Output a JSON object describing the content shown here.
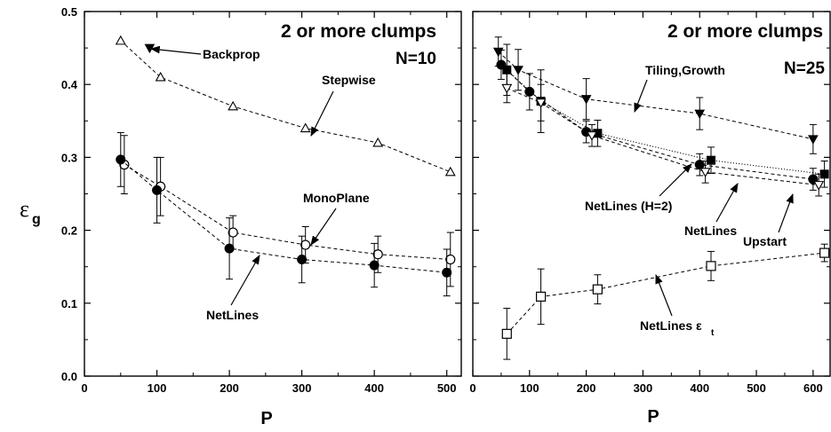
{
  "chart_data": [
    {
      "type": "scatter",
      "panel": "left",
      "title": "2 or more clumps",
      "n_label": "N=10",
      "xlabel": "P",
      "ylabel": "ε",
      "ylabel_sub": "g",
      "xlim": [
        0,
        520
      ],
      "ylim": [
        0,
        0.5
      ],
      "xticks": [
        0,
        100,
        200,
        300,
        400,
        500
      ],
      "yticks": [
        0.0,
        0.1,
        0.2,
        0.3,
        0.4,
        0.5
      ],
      "series": [
        {
          "name": "Backprop",
          "marker": "triangle-down-filled",
          "dashed": true,
          "x": [
            90
          ],
          "y": [
            0.45
          ],
          "err": [
            0
          ]
        },
        {
          "name": "Stepwise",
          "marker": "triangle-up-open",
          "dashed": true,
          "x": [
            50,
            105,
            205,
            305,
            405,
            505
          ],
          "y": [
            0.46,
            0.41,
            0.37,
            0.34,
            0.32,
            0.28
          ],
          "err": [
            0,
            0,
            0,
            0,
            0,
            0
          ]
        },
        {
          "name": "MonoPlane",
          "marker": "circle-open",
          "dashed": true,
          "x": [
            55,
            105,
            205,
            305,
            405,
            505
          ],
          "y": [
            0.29,
            0.26,
            0.197,
            0.18,
            0.167,
            0.16
          ],
          "err": [
            0.04,
            0.04,
            0.023,
            0.025,
            0.025,
            0.037
          ]
        },
        {
          "name": "NetLines",
          "marker": "circle-filled",
          "dashed": true,
          "x": [
            50,
            100,
            200,
            300,
            400,
            500
          ],
          "y": [
            0.297,
            0.255,
            0.175,
            0.16,
            0.152,
            0.142
          ],
          "err": [
            0.037,
            0.045,
            0.042,
            0.032,
            0.03,
            0.032
          ]
        }
      ],
      "annotations": [
        {
          "text": "Backprop",
          "target_series": "Backprop"
        },
        {
          "text": "Stepwise",
          "target_series": "Stepwise"
        },
        {
          "text": "MonoPlane",
          "target_series": "MonoPlane"
        },
        {
          "text": "NetLines",
          "target_series": "NetLines"
        }
      ]
    },
    {
      "type": "scatter",
      "panel": "right",
      "title": "2 or more clumps",
      "n_label": "N=25",
      "xlabel": "P",
      "xlim": [
        0,
        630
      ],
      "ylim": [
        0,
        0.5
      ],
      "xticks": [
        0,
        100,
        200,
        300,
        400,
        500,
        600
      ],
      "yticks": [
        0.0,
        0.1,
        0.2,
        0.3,
        0.4,
        0.5
      ],
      "series": [
        {
          "name": "Tiling,Growth",
          "marker": "triangle-down-filled",
          "dashed": true,
          "x": [
            45,
            80,
            200,
            400,
            600
          ],
          "y": [
            0.445,
            0.42,
            0.38,
            0.36,
            0.325
          ],
          "err": [
            0.02,
            0.028,
            0.028,
            0.022,
            0.02
          ]
        },
        {
          "name": "NetLines (H=2)",
          "marker": "square-filled",
          "dashed": false,
          "dotted": true,
          "x": [
            60,
            120,
            220,
            420,
            620
          ],
          "y": [
            0.42,
            0.377,
            0.333,
            0.296,
            0.277
          ],
          "err": [
            0.035,
            0.043,
            0.018,
            0.018,
            0.018
          ]
        },
        {
          "name": "NetLines",
          "marker": "circle-filled",
          "dashed": true,
          "x": [
            50,
            100,
            200,
            400,
            600
          ],
          "y": [
            0.427,
            0.39,
            0.335,
            0.29,
            0.27
          ],
          "err": [
            0.02,
            0.025,
            0.015,
            0.015,
            0.015
          ]
        },
        {
          "name": "Upstart",
          "marker": "triangle-down-open",
          "dashed": true,
          "x": [
            60,
            120,
            210,
            410,
            610
          ],
          "y": [
            0.395,
            0.375,
            0.33,
            0.28,
            0.262
          ],
          "err": [
            0.02,
            0.025,
            0.015,
            0.015,
            0.015
          ]
        },
        {
          "name": "NetLines εt",
          "marker": "square-open",
          "dashed": true,
          "x": [
            60,
            120,
            220,
            420,
            620
          ],
          "y": [
            0.058,
            0.109,
            0.119,
            0.151,
            0.169
          ],
          "err": [
            0.035,
            0.038,
            0.02,
            0.02,
            0.012
          ]
        }
      ],
      "annotations": [
        {
          "text": "Tiling,Growth"
        },
        {
          "text": "NetLines (H=2)"
        },
        {
          "text": "NetLines"
        },
        {
          "text": "Upstart"
        },
        {
          "text": "NetLines ε",
          "sub": "t"
        }
      ]
    }
  ]
}
